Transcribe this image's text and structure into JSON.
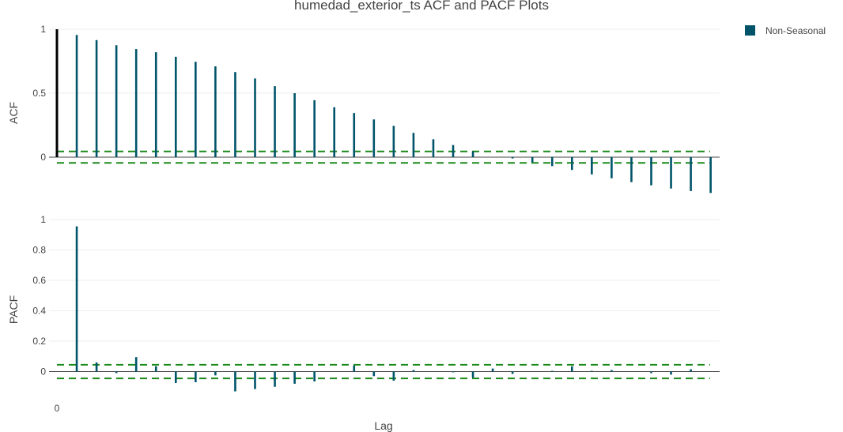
{
  "title": "humedad_exterior_ts ACF and PACF Plots",
  "legend": {
    "label": "Non-Seasonal",
    "color": "#00546a",
    "placement": "top-right"
  },
  "colors": {
    "bar": "#00546a",
    "lag0": "#000000",
    "confidence": "#1a8a1a",
    "grid": "#eeeeee",
    "zeroline": "#444444"
  },
  "chart_data": [
    {
      "type": "bar",
      "title": "",
      "ylabel": "ACF",
      "xlabel": "",
      "ylim": [
        -0.28,
        1.02
      ],
      "yticks": [
        0,
        0.5,
        1
      ],
      "ytick_labels": [
        "0",
        "0.5",
        "1"
      ],
      "grid": true,
      "confidence_band": [
        -0.045,
        0.045
      ],
      "x": [
        0,
        1,
        2,
        3,
        4,
        5,
        6,
        7,
        8,
        9,
        10,
        11,
        12,
        13,
        14,
        15,
        16,
        17,
        18,
        19,
        20,
        21,
        22,
        23,
        24,
        25,
        26,
        27,
        28,
        29,
        30,
        31,
        32,
        33
      ],
      "values": [
        1.0,
        0.955,
        0.915,
        0.875,
        0.845,
        0.82,
        0.785,
        0.745,
        0.71,
        0.665,
        0.615,
        0.555,
        0.5,
        0.445,
        0.39,
        0.345,
        0.295,
        0.245,
        0.19,
        0.14,
        0.095,
        0.045,
        0.0,
        -0.01,
        -0.04,
        -0.07,
        -0.1,
        -0.135,
        -0.165,
        -0.195,
        -0.22,
        -0.245,
        -0.265,
        -0.28
      ]
    },
    {
      "type": "bar",
      "title": "",
      "ylabel": "PACF",
      "xlabel": "Lag",
      "ylim": [
        -0.03,
        1.0
      ],
      "yticks": [
        0,
        0.2,
        0.4,
        0.6,
        0.8,
        1
      ],
      "ytick_labels": [
        "0",
        "0.2",
        "0.4",
        "0.6",
        "0.8",
        "1"
      ],
      "xticks": [
        0
      ],
      "xtick_labels": [
        "0"
      ],
      "grid": true,
      "confidence_band": [
        -0.045,
        0.045
      ],
      "x": [
        1,
        2,
        3,
        4,
        5,
        6,
        7,
        8,
        9,
        10,
        11,
        12,
        13,
        14,
        15,
        16,
        17,
        18,
        19,
        20,
        21,
        22,
        23,
        24,
        25,
        26,
        27,
        28,
        29,
        30,
        31,
        32,
        33
      ],
      "values": [
        0.955,
        0.06,
        -0.01,
        0.095,
        0.035,
        -0.075,
        -0.07,
        -0.025,
        -0.13,
        -0.115,
        -0.1,
        -0.08,
        -0.065,
        0.0,
        0.04,
        -0.03,
        -0.06,
        0.01,
        0.0,
        -0.005,
        -0.04,
        0.02,
        -0.015,
        0.0,
        0.005,
        0.035,
        0.005,
        0.01,
        0.0,
        -0.01,
        -0.02,
        0.015,
        0.0
      ]
    }
  ]
}
